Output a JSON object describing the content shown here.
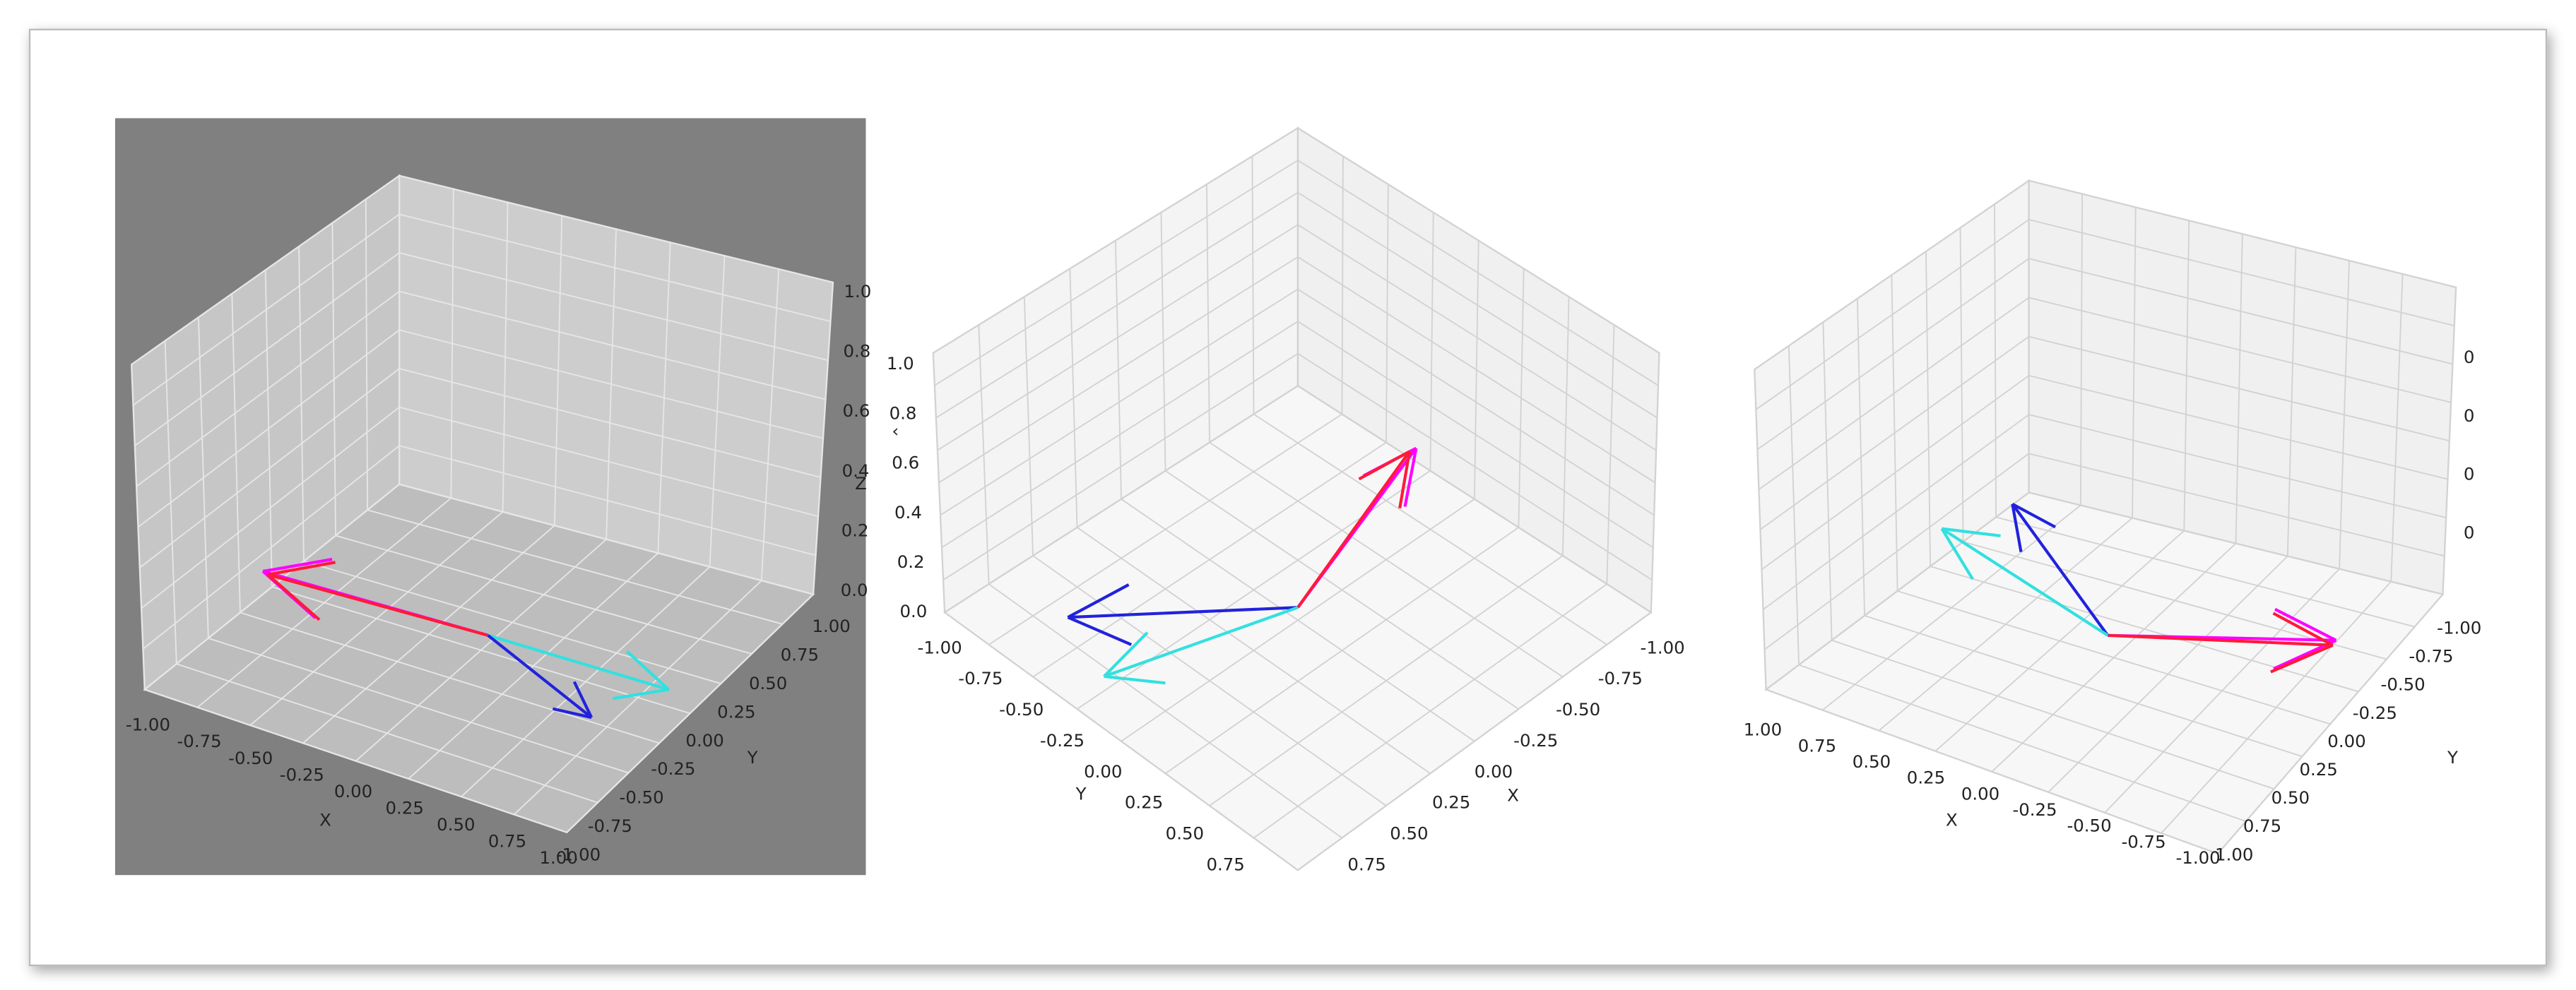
{
  "panels": [
    {
      "x_label": "X",
      "y_label": "Y",
      "z_label": "Z",
      "xticks": [
        "-1.00",
        "-0.75",
        "-0.50",
        "-0.25",
        "0.00",
        "0.25",
        "0.50",
        "0.75",
        "1.00"
      ],
      "yticks": [
        "-1.00",
        "-0.75",
        "-0.50",
        "-0.25",
        "0.00",
        "0.25",
        "0.50",
        "0.75",
        "1.00"
      ],
      "zticks": [
        "0.0",
        "0.2",
        "0.4",
        "0.6",
        "0.8",
        "1.0"
      ]
    },
    {
      "x_label": "X",
      "y_label": "Y",
      "z_label": "‹",
      "xticks": [
        "-1.00",
        "-0.75",
        "-0.50",
        "-0.25",
        "0.00",
        "0.25",
        "0.50",
        "0.75"
      ],
      "yticks": [
        "-1.00",
        "-0.75",
        "-0.50",
        "-0.25",
        "0.00",
        "0.25",
        "0.50",
        "0.75"
      ],
      "zticks": [
        "0.0",
        "0.2",
        "0.4",
        "0.6",
        "0.8",
        "1.0"
      ]
    },
    {
      "x_label": "X",
      "y_label": "Y",
      "xticks": [
        "1.00",
        "0.75",
        "0.50",
        "0.25",
        "0.00",
        "-0.25",
        "-0.50",
        "-0.75",
        "-1.00"
      ],
      "yticks": [
        "-1.00",
        "-0.75",
        "-0.50",
        "-0.25",
        "0.00",
        "0.25",
        "0.50",
        "0.75",
        "1.00"
      ],
      "zticks": [
        "0",
        "0",
        "0",
        "0"
      ]
    }
  ]
}
